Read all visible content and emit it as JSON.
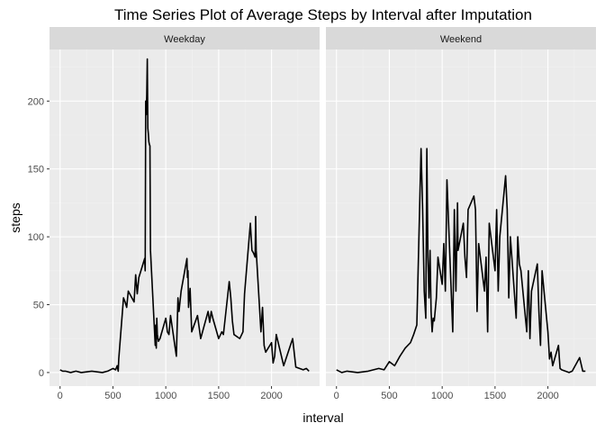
{
  "chart_data": {
    "type": "line",
    "title": "Time Series Plot of Average Steps by Interval after Imputation",
    "xlabel": "interval",
    "ylabel": "steps",
    "xlim": [
      -100,
      2455
    ],
    "ylim": [
      -10,
      238
    ],
    "x_ticks": [
      0,
      500,
      1000,
      1500,
      2000
    ],
    "x_tick_labels": [
      "0",
      "500",
      "1000",
      "1500",
      "2000"
    ],
    "y_ticks": [
      0,
      50,
      100,
      150,
      200
    ],
    "y_tick_labels": [
      "0",
      "50",
      "100",
      "150",
      "200"
    ],
    "grid": true,
    "line_color": "#000000",
    "panel_background": "#ebebeb",
    "strip_background": "#d9d9d9",
    "facets": [
      {
        "name": "Weekday",
        "x": [
          0,
          25,
          50,
          100,
          150,
          200,
          300,
          400,
          450,
          500,
          525,
          540,
          550,
          555,
          600,
          615,
          630,
          645,
          700,
          715,
          730,
          745,
          800,
          805,
          810,
          815,
          820,
          825,
          830,
          835,
          840,
          845,
          850,
          855,
          900,
          905,
          910,
          915,
          920,
          930,
          945,
          1000,
          1015,
          1030,
          1045,
          1100,
          1115,
          1125,
          1145,
          1200,
          1205,
          1210,
          1215,
          1230,
          1245,
          1300,
          1330,
          1400,
          1415,
          1430,
          1445,
          1500,
          1530,
          1545,
          1600,
          1615,
          1630,
          1645,
          1700,
          1730,
          1745,
          1800,
          1815,
          1830,
          1845,
          1850,
          1855,
          1900,
          1915,
          1930,
          1945,
          2000,
          2015,
          2030,
          2045,
          2100,
          2115,
          2200,
          2230,
          2300,
          2330,
          2355
        ],
        "y": [
          2,
          1,
          1,
          0,
          1,
          0,
          1,
          0,
          1,
          3,
          2,
          5,
          1,
          10,
          55,
          52,
          48,
          60,
          52,
          72,
          58,
          70,
          84,
          75,
          200,
          190,
          205,
          231,
          180,
          176,
          170,
          168,
          167,
          90,
          20,
          35,
          18,
          40,
          28,
          23,
          25,
          40,
          30,
          28,
          42,
          12,
          55,
          45,
          60,
          84,
          70,
          75,
          48,
          62,
          30,
          42,
          25,
          45,
          37,
          45,
          40,
          25,
          30,
          28,
          67,
          55,
          38,
          28,
          25,
          30,
          58,
          110,
          90,
          88,
          85,
          115,
          90,
          30,
          48,
          20,
          15,
          22,
          7,
          12,
          28,
          10,
          5,
          25,
          4,
          2,
          3,
          1
        ]
      },
      {
        "name": "Weekend",
        "x": [
          0,
          50,
          100,
          200,
          300,
          400,
          450,
          500,
          550,
          600,
          650,
          700,
          730,
          760,
          800,
          815,
          830,
          845,
          855,
          865,
          875,
          885,
          895,
          905,
          915,
          925,
          945,
          960,
          1000,
          1015,
          1030,
          1045,
          1100,
          1115,
          1130,
          1145,
          1150,
          1200,
          1215,
          1230,
          1245,
          1300,
          1315,
          1330,
          1345,
          1400,
          1415,
          1430,
          1445,
          1500,
          1515,
          1530,
          1545,
          1600,
          1615,
          1630,
          1645,
          1700,
          1715,
          1730,
          1745,
          1800,
          1815,
          1830,
          1845,
          1900,
          1915,
          1930,
          1945,
          2000,
          2015,
          2030,
          2045,
          2100,
          2115,
          2130,
          2200,
          2230,
          2300,
          2330,
          2355
        ],
        "y": [
          2,
          0,
          1,
          0,
          1,
          3,
          2,
          8,
          5,
          12,
          18,
          22,
          28,
          35,
          165,
          120,
          60,
          40,
          165,
          85,
          55,
          90,
          45,
          30,
          40,
          38,
          55,
          85,
          65,
          95,
          60,
          142,
          30,
          120,
          60,
          125,
          90,
          110,
          85,
          70,
          120,
          130,
          120,
          45,
          95,
          60,
          85,
          30,
          110,
          75,
          120,
          60,
          100,
          145,
          120,
          55,
          100,
          40,
          100,
          80,
          75,
          30,
          75,
          25,
          60,
          80,
          45,
          20,
          75,
          30,
          10,
          15,
          5,
          20,
          3,
          2,
          0,
          1,
          11,
          1,
          1
        ]
      }
    ]
  }
}
